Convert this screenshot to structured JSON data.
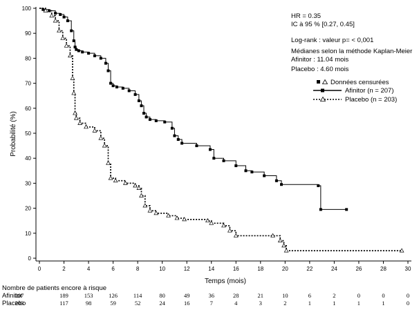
{
  "chart_data": {
    "type": "line",
    "title": "",
    "xlabel": "Temps (mois)",
    "ylabel": "Probabilité (%)",
    "xlim": [
      0,
      30
    ],
    "ylim": [
      0,
      100
    ],
    "x_ticks": [
      0,
      2,
      4,
      6,
      8,
      10,
      12,
      14,
      16,
      18,
      20,
      22,
      24,
      26,
      28,
      30
    ],
    "y_ticks": [
      0,
      10,
      20,
      30,
      40,
      50,
      60,
      70,
      80,
      90,
      100
    ],
    "grid": false,
    "legend_position": "right",
    "legend_title": "Données censurées",
    "series": [
      {
        "name": "Afinitor (n = 207)",
        "color": "#000000",
        "line_style": "solid",
        "censor_marker": "filled-square",
        "x": [
          0,
          0.3,
          0.8,
          1.3,
          1.7,
          2.0,
          2.3,
          2.6,
          2.8,
          2.9,
          3.0,
          3.2,
          3.5,
          4.0,
          4.5,
          5.0,
          5.4,
          5.6,
          5.8,
          6.0,
          6.3,
          6.8,
          7.3,
          7.8,
          8.1,
          8.3,
          8.5,
          8.7,
          9.0,
          9.5,
          10.2,
          10.8,
          11.0,
          11.3,
          11.6,
          12.8,
          13.9,
          14.2,
          15.0,
          16.0,
          16.8,
          17.3,
          18.3,
          19.3,
          19.7,
          22.7,
          22.9,
          25.0
        ],
        "y": [
          100,
          99.5,
          99,
          98,
          97.5,
          96.5,
          95,
          91,
          87,
          84.5,
          83.5,
          83,
          82.5,
          82,
          81,
          80,
          78,
          75,
          70,
          69,
          68.5,
          68,
          67,
          65.5,
          63,
          61,
          58,
          56.5,
          55.5,
          55,
          54.5,
          52,
          49,
          47.5,
          46,
          45,
          43.5,
          40,
          39,
          37,
          35,
          34.5,
          33,
          31,
          29.5,
          29,
          19.5,
          19.5
        ]
      },
      {
        "name": "Placebo (n = 203)",
        "color": "#000000",
        "line_style": "dotted",
        "censor_marker": "open-triangle",
        "x": [
          0,
          0.5,
          1.0,
          1.3,
          1.6,
          1.9,
          2.2,
          2.5,
          2.7,
          2.8,
          2.9,
          3.0,
          3.3,
          3.8,
          4.5,
          5.0,
          5.3,
          5.6,
          5.8,
          6.2,
          7.0,
          7.8,
          8.1,
          8.3,
          8.6,
          9.0,
          9.5,
          10.5,
          11.2,
          11.8,
          13.7,
          14.0,
          15.0,
          15.5,
          16.0,
          19.0,
          19.6,
          19.9,
          20.1,
          29.5
        ],
        "y": [
          100,
          99,
          97,
          95,
          91,
          88,
          85,
          81,
          72,
          66,
          58,
          56,
          54,
          52.5,
          51,
          48,
          45,
          38,
          32,
          31,
          30,
          29,
          28,
          25,
          21,
          19,
          18,
          17,
          16,
          15.5,
          15,
          14,
          13,
          11,
          9,
          9,
          7,
          5,
          3,
          3
        ]
      }
    ],
    "annotations": {
      "hr": "HR = 0.35",
      "ci": "IC à 95 % [0.27, 0.45]",
      "logrank": "Log-rank : valeur p= < 0,001",
      "medians_title": "Médianes selon la méthode Kaplan-Meier",
      "median_afinitor": "Afinitor : 11.04 mois",
      "median_placebo": "Placebo : 4.60 mois"
    }
  },
  "risk_table": {
    "title": "Nombre de patients encore à risque",
    "times": [
      0,
      2,
      4,
      6,
      8,
      10,
      12,
      14,
      16,
      18,
      20,
      22,
      24,
      26,
      28,
      30
    ],
    "rows": [
      {
        "label": "Afinitor",
        "values": [
          "207",
          "189",
          "153",
          "126",
          "114",
          "80",
          "49",
          "36",
          "28",
          "21",
          "10",
          "6",
          "2",
          "0",
          "0",
          "0"
        ]
      },
      {
        "label": "Placebo",
        "values": [
          "203",
          "117",
          "98",
          "59",
          "52",
          "24",
          "16",
          "7",
          "4",
          "3",
          "2",
          "1",
          "1",
          "1",
          "1",
          "0"
        ]
      }
    ]
  }
}
